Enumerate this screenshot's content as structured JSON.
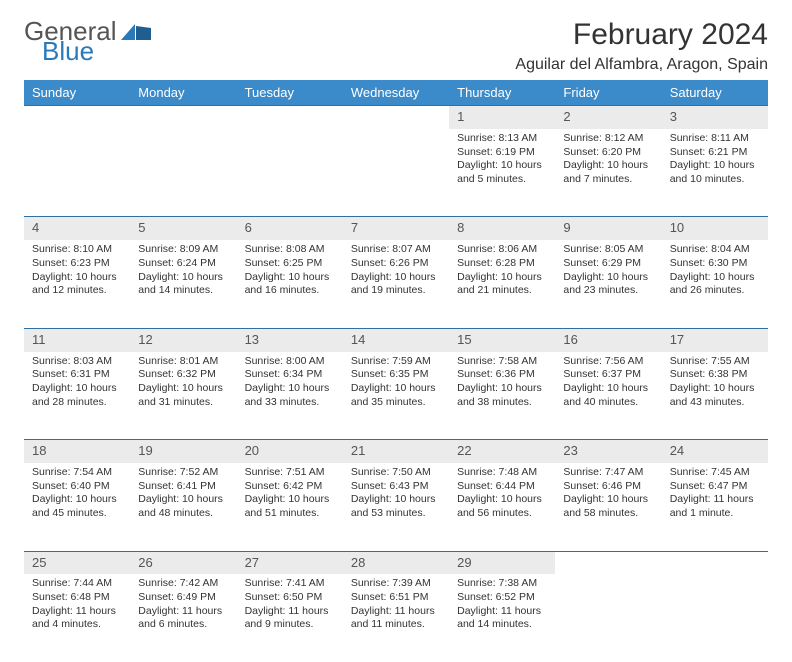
{
  "logo": {
    "general": "General",
    "blue": "Blue"
  },
  "title": "February 2024",
  "location": "Aguilar del Alfambra, Aragon, Spain",
  "colors": {
    "header_bg": "#3b8aca",
    "header_text": "#ffffff",
    "daynum_bg": "#ebebeb",
    "row_border": "#2f6fa6",
    "logo_blue": "#2a7ab9",
    "logo_gray": "#555555",
    "text": "#333333"
  },
  "weekdays": [
    "Sunday",
    "Monday",
    "Tuesday",
    "Wednesday",
    "Thursday",
    "Friday",
    "Saturday"
  ],
  "weeks": [
    [
      null,
      null,
      null,
      null,
      {
        "n": "1",
        "sr": "8:13 AM",
        "ss": "6:19 PM",
        "dl": "10 hours and 5 minutes."
      },
      {
        "n": "2",
        "sr": "8:12 AM",
        "ss": "6:20 PM",
        "dl": "10 hours and 7 minutes."
      },
      {
        "n": "3",
        "sr": "8:11 AM",
        "ss": "6:21 PM",
        "dl": "10 hours and 10 minutes."
      }
    ],
    [
      {
        "n": "4",
        "sr": "8:10 AM",
        "ss": "6:23 PM",
        "dl": "10 hours and 12 minutes."
      },
      {
        "n": "5",
        "sr": "8:09 AM",
        "ss": "6:24 PM",
        "dl": "10 hours and 14 minutes."
      },
      {
        "n": "6",
        "sr": "8:08 AM",
        "ss": "6:25 PM",
        "dl": "10 hours and 16 minutes."
      },
      {
        "n": "7",
        "sr": "8:07 AM",
        "ss": "6:26 PM",
        "dl": "10 hours and 19 minutes."
      },
      {
        "n": "8",
        "sr": "8:06 AM",
        "ss": "6:28 PM",
        "dl": "10 hours and 21 minutes."
      },
      {
        "n": "9",
        "sr": "8:05 AM",
        "ss": "6:29 PM",
        "dl": "10 hours and 23 minutes."
      },
      {
        "n": "10",
        "sr": "8:04 AM",
        "ss": "6:30 PM",
        "dl": "10 hours and 26 minutes."
      }
    ],
    [
      {
        "n": "11",
        "sr": "8:03 AM",
        "ss": "6:31 PM",
        "dl": "10 hours and 28 minutes."
      },
      {
        "n": "12",
        "sr": "8:01 AM",
        "ss": "6:32 PM",
        "dl": "10 hours and 31 minutes."
      },
      {
        "n": "13",
        "sr": "8:00 AM",
        "ss": "6:34 PM",
        "dl": "10 hours and 33 minutes."
      },
      {
        "n": "14",
        "sr": "7:59 AM",
        "ss": "6:35 PM",
        "dl": "10 hours and 35 minutes."
      },
      {
        "n": "15",
        "sr": "7:58 AM",
        "ss": "6:36 PM",
        "dl": "10 hours and 38 minutes."
      },
      {
        "n": "16",
        "sr": "7:56 AM",
        "ss": "6:37 PM",
        "dl": "10 hours and 40 minutes."
      },
      {
        "n": "17",
        "sr": "7:55 AM",
        "ss": "6:38 PM",
        "dl": "10 hours and 43 minutes."
      }
    ],
    [
      {
        "n": "18",
        "sr": "7:54 AM",
        "ss": "6:40 PM",
        "dl": "10 hours and 45 minutes."
      },
      {
        "n": "19",
        "sr": "7:52 AM",
        "ss": "6:41 PM",
        "dl": "10 hours and 48 minutes."
      },
      {
        "n": "20",
        "sr": "7:51 AM",
        "ss": "6:42 PM",
        "dl": "10 hours and 51 minutes."
      },
      {
        "n": "21",
        "sr": "7:50 AM",
        "ss": "6:43 PM",
        "dl": "10 hours and 53 minutes."
      },
      {
        "n": "22",
        "sr": "7:48 AM",
        "ss": "6:44 PM",
        "dl": "10 hours and 56 minutes."
      },
      {
        "n": "23",
        "sr": "7:47 AM",
        "ss": "6:46 PM",
        "dl": "10 hours and 58 minutes."
      },
      {
        "n": "24",
        "sr": "7:45 AM",
        "ss": "6:47 PM",
        "dl": "11 hours and 1 minute."
      }
    ],
    [
      {
        "n": "25",
        "sr": "7:44 AM",
        "ss": "6:48 PM",
        "dl": "11 hours and 4 minutes."
      },
      {
        "n": "26",
        "sr": "7:42 AM",
        "ss": "6:49 PM",
        "dl": "11 hours and 6 minutes."
      },
      {
        "n": "27",
        "sr": "7:41 AM",
        "ss": "6:50 PM",
        "dl": "11 hours and 9 minutes."
      },
      {
        "n": "28",
        "sr": "7:39 AM",
        "ss": "6:51 PM",
        "dl": "11 hours and 11 minutes."
      },
      {
        "n": "29",
        "sr": "7:38 AM",
        "ss": "6:52 PM",
        "dl": "11 hours and 14 minutes."
      },
      null,
      null
    ]
  ],
  "labels": {
    "sunrise": "Sunrise:",
    "sunset": "Sunset:",
    "daylight": "Daylight:"
  }
}
